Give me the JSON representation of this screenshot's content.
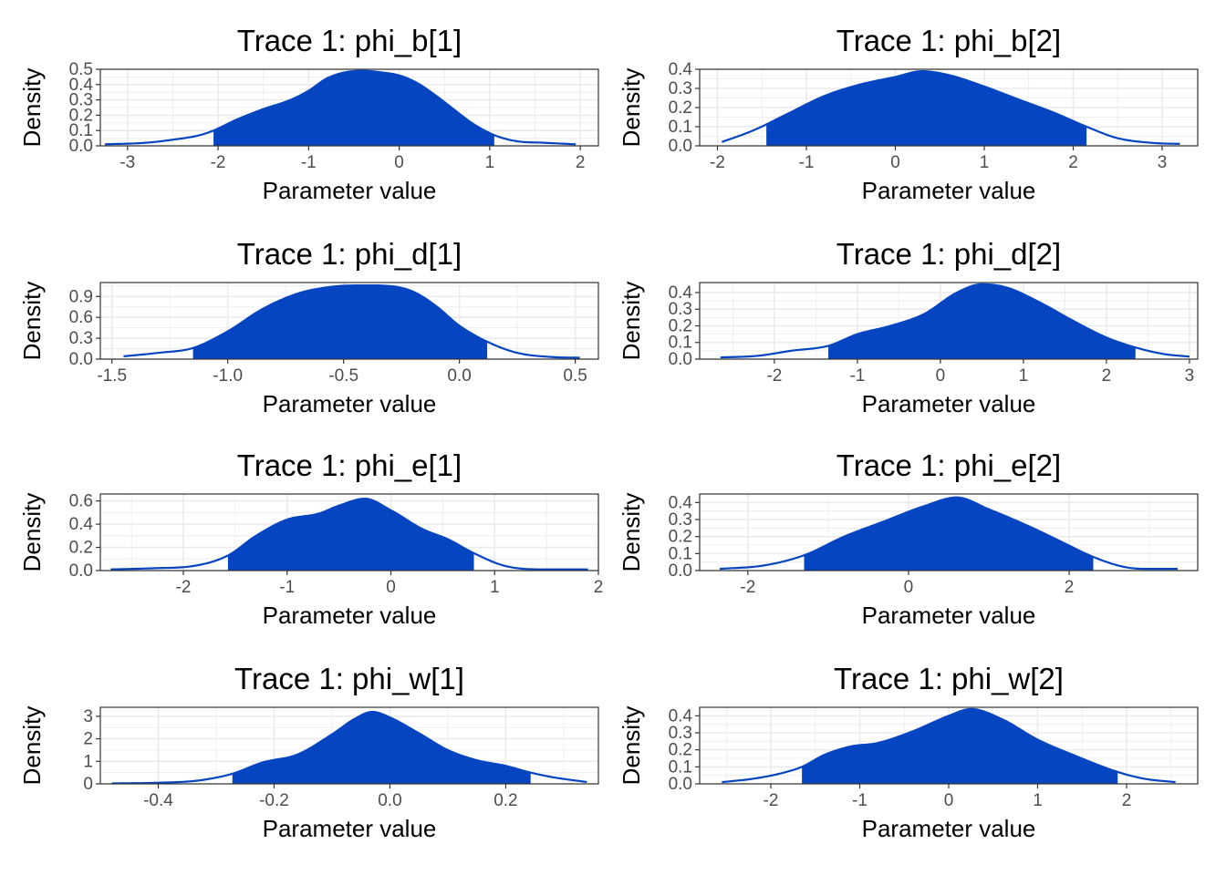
{
  "colors": {
    "fill": "#0645c1",
    "line": "#0645c1"
  },
  "chart_data": [
    {
      "type": "area",
      "title": "Trace 1: phi_b[1]",
      "xlabel": "Parameter value",
      "ylabel": "Density",
      "xlim": [
        -3.3,
        2.2
      ],
      "ylim": [
        0,
        0.5
      ],
      "x_ticks": [
        -3,
        -2,
        -1,
        0,
        1,
        2
      ],
      "x_tick_labels": [
        "-3",
        "-2",
        "-1",
        "0",
        "1",
        "2"
      ],
      "y_ticks": [
        0,
        0.1,
        0.2,
        0.3,
        0.4,
        0.5
      ],
      "y_tick_labels": [
        "0.0",
        "0.1",
        "0.2",
        "0.3",
        "0.4",
        "0.5"
      ],
      "grid": true,
      "shaded_interval": [
        -2.05,
        1.05
      ],
      "curve": {
        "x": [
          -3.25,
          -2.8,
          -2.5,
          -2.2,
          -2.05,
          -1.8,
          -1.5,
          -1.2,
          -1.0,
          -0.8,
          -0.6,
          -0.4,
          -0.2,
          0.0,
          0.2,
          0.4,
          0.6,
          0.8,
          1.05,
          1.3,
          1.6,
          1.95
        ],
        "y": [
          0.01,
          0.02,
          0.04,
          0.07,
          0.1,
          0.17,
          0.24,
          0.3,
          0.36,
          0.44,
          0.48,
          0.49,
          0.48,
          0.46,
          0.41,
          0.33,
          0.24,
          0.15,
          0.07,
          0.03,
          0.02,
          0.01
        ]
      }
    },
    {
      "type": "area",
      "title": "Trace 1: phi_b[2]",
      "xlabel": "Parameter value",
      "ylabel": "Density",
      "xlim": [
        -2.2,
        3.4
      ],
      "ylim": [
        0,
        0.4
      ],
      "x_ticks": [
        -2,
        -1,
        0,
        1,
        2,
        3
      ],
      "x_tick_labels": [
        "-2",
        "-1",
        "0",
        "1",
        "2",
        "3"
      ],
      "y_ticks": [
        0,
        0.1,
        0.2,
        0.3,
        0.4
      ],
      "y_tick_labels": [
        "0.0",
        "0.1",
        "0.2",
        "0.3",
        "0.4"
      ],
      "grid": true,
      "shaded_interval": [
        -1.45,
        2.15
      ],
      "curve": {
        "x": [
          -1.95,
          -1.6,
          -1.2,
          -0.8,
          -0.4,
          0.0,
          0.3,
          0.6,
          1.0,
          1.4,
          1.8,
          2.15,
          2.5,
          2.9,
          3.2
        ],
        "y": [
          0.02,
          0.08,
          0.17,
          0.26,
          0.32,
          0.36,
          0.39,
          0.37,
          0.31,
          0.24,
          0.17,
          0.1,
          0.04,
          0.015,
          0.01
        ]
      }
    },
    {
      "type": "area",
      "title": "Trace 1: phi_d[1]",
      "xlabel": "Parameter value",
      "ylabel": "Density",
      "xlim": [
        -1.55,
        0.6
      ],
      "ylim": [
        0,
        1.1
      ],
      "x_ticks": [
        -1.5,
        -1.0,
        -0.5,
        0.0,
        0.5
      ],
      "x_tick_labels": [
        "-1.5",
        "-1.0",
        "-0.5",
        "0.0",
        "0.5"
      ],
      "y_ticks": [
        0,
        0.3,
        0.6,
        0.9
      ],
      "y_tick_labels": [
        "0.0",
        "0.3",
        "0.6",
        "0.9"
      ],
      "grid": true,
      "shaded_interval": [
        -1.15,
        0.12
      ],
      "curve": {
        "x": [
          -1.45,
          -1.3,
          -1.15,
          -1.0,
          -0.85,
          -0.7,
          -0.55,
          -0.4,
          -0.3,
          -0.2,
          -0.1,
          0.0,
          0.12,
          0.25,
          0.4,
          0.52
        ],
        "y": [
          0.04,
          0.09,
          0.16,
          0.4,
          0.72,
          0.94,
          1.04,
          1.06,
          1.05,
          0.97,
          0.76,
          0.48,
          0.25,
          0.09,
          0.03,
          0.02
        ]
      }
    },
    {
      "type": "area",
      "title": "Trace 1: phi_d[2]",
      "xlabel": "Parameter value",
      "ylabel": "Density",
      "xlim": [
        -2.9,
        3.1
      ],
      "ylim": [
        0,
        0.46
      ],
      "x_ticks": [
        -2,
        -1,
        0,
        1,
        2,
        3
      ],
      "x_tick_labels": [
        "-2",
        "-1",
        "0",
        "1",
        "2",
        "3"
      ],
      "y_ticks": [
        0,
        0.1,
        0.2,
        0.3,
        0.4
      ],
      "y_tick_labels": [
        "0.0",
        "0.1",
        "0.2",
        "0.3",
        "0.4"
      ],
      "grid": true,
      "shaded_interval": [
        -1.35,
        2.35
      ],
      "curve": {
        "x": [
          -2.65,
          -2.2,
          -1.8,
          -1.35,
          -1.0,
          -0.6,
          -0.2,
          0.2,
          0.5,
          0.8,
          1.2,
          1.6,
          2.0,
          2.35,
          2.7,
          3.0
        ],
        "y": [
          0.01,
          0.02,
          0.05,
          0.08,
          0.15,
          0.2,
          0.27,
          0.4,
          0.45,
          0.43,
          0.34,
          0.23,
          0.13,
          0.07,
          0.03,
          0.015
        ]
      }
    },
    {
      "type": "area",
      "title": "Trace 1: phi_e[1]",
      "xlabel": "Parameter value",
      "ylabel": "Density",
      "xlim": [
        -2.8,
        2.0
      ],
      "ylim": [
        0,
        0.66
      ],
      "x_ticks": [
        -2,
        -1,
        0,
        1,
        2
      ],
      "x_tick_labels": [
        "-2",
        "-1",
        "0",
        "1",
        "2"
      ],
      "y_ticks": [
        0,
        0.2,
        0.4,
        0.6
      ],
      "y_tick_labels": [
        "0.0",
        "0.2",
        "0.4",
        "0.6"
      ],
      "grid": true,
      "shaded_interval": [
        -1.57,
        0.8
      ],
      "curve": {
        "x": [
          -2.7,
          -2.3,
          -1.9,
          -1.57,
          -1.3,
          -1.0,
          -0.7,
          -0.5,
          -0.25,
          0.0,
          0.3,
          0.55,
          0.8,
          1.1,
          1.5,
          1.9
        ],
        "y": [
          0.01,
          0.02,
          0.04,
          0.13,
          0.3,
          0.44,
          0.49,
          0.56,
          0.62,
          0.52,
          0.36,
          0.27,
          0.15,
          0.04,
          0.01,
          0.01
        ]
      }
    },
    {
      "type": "area",
      "title": "Trace 1: phi_e[2]",
      "xlabel": "Parameter value",
      "ylabel": "Density",
      "xlim": [
        -2.6,
        3.6
      ],
      "ylim": [
        0,
        0.45
      ],
      "x_ticks": [
        -2,
        0,
        2
      ],
      "x_tick_labels": [
        "-2",
        "0",
        "2"
      ],
      "y_ticks": [
        0,
        0.1,
        0.2,
        0.3,
        0.4
      ],
      "y_tick_labels": [
        "0.0",
        "0.1",
        "0.2",
        "0.3",
        "0.4"
      ],
      "grid": true,
      "shaded_interval": [
        -1.3,
        2.3
      ],
      "curve": {
        "x": [
          -2.35,
          -1.8,
          -1.3,
          -0.8,
          -0.3,
          0.2,
          0.6,
          1.0,
          1.5,
          1.9,
          2.3,
          2.7,
          3.0,
          3.35
        ],
        "y": [
          0.01,
          0.03,
          0.09,
          0.2,
          0.29,
          0.38,
          0.43,
          0.36,
          0.26,
          0.17,
          0.08,
          0.02,
          0.01,
          0.01
        ]
      }
    },
    {
      "type": "area",
      "title": "Trace 1: phi_w[1]",
      "xlabel": "Parameter value",
      "ylabel": "Density",
      "xlim": [
        -0.5,
        0.36
      ],
      "ylim": [
        0,
        3.4
      ],
      "x_ticks": [
        -0.4,
        -0.2,
        0.0,
        0.2
      ],
      "x_tick_labels": [
        "-0.4",
        "-0.2",
        "0.0",
        "0.2"
      ],
      "y_ticks": [
        0,
        1,
        2,
        3
      ],
      "y_tick_labels": [
        "0",
        "1",
        "2",
        "3"
      ],
      "grid": true,
      "shaded_interval": [
        -0.272,
        0.243
      ],
      "curve": {
        "x": [
          -0.48,
          -0.4,
          -0.33,
          -0.272,
          -0.22,
          -0.16,
          -0.1,
          -0.06,
          -0.03,
          0.0,
          0.05,
          0.1,
          0.15,
          0.2,
          0.243,
          0.28,
          0.34
        ],
        "y": [
          0.02,
          0.05,
          0.15,
          0.45,
          0.95,
          1.3,
          2.2,
          2.9,
          3.2,
          2.95,
          2.25,
          1.5,
          1.05,
          0.8,
          0.5,
          0.3,
          0.08
        ]
      }
    },
    {
      "type": "area",
      "title": "Trace 1: phi_w[2]",
      "xlabel": "Parameter value",
      "ylabel": "Density",
      "xlim": [
        -2.8,
        2.8
      ],
      "ylim": [
        0,
        0.45
      ],
      "x_ticks": [
        -2,
        -1,
        0,
        1,
        2
      ],
      "x_tick_labels": [
        "-2",
        "-1",
        "0",
        "1",
        "2"
      ],
      "y_ticks": [
        0,
        0.1,
        0.2,
        0.3,
        0.4
      ],
      "y_tick_labels": [
        "0.0",
        "0.1",
        "0.2",
        "0.3",
        "0.4"
      ],
      "grid": true,
      "shaded_interval": [
        -1.65,
        1.9
      ],
      "curve": {
        "x": [
          -2.55,
          -2.2,
          -1.9,
          -1.65,
          -1.4,
          -1.1,
          -0.8,
          -0.4,
          0.0,
          0.25,
          0.6,
          1.0,
          1.4,
          1.9,
          2.2,
          2.55
        ],
        "y": [
          0.01,
          0.03,
          0.06,
          0.1,
          0.17,
          0.22,
          0.24,
          0.31,
          0.4,
          0.44,
          0.38,
          0.26,
          0.17,
          0.07,
          0.03,
          0.01
        ]
      }
    }
  ]
}
